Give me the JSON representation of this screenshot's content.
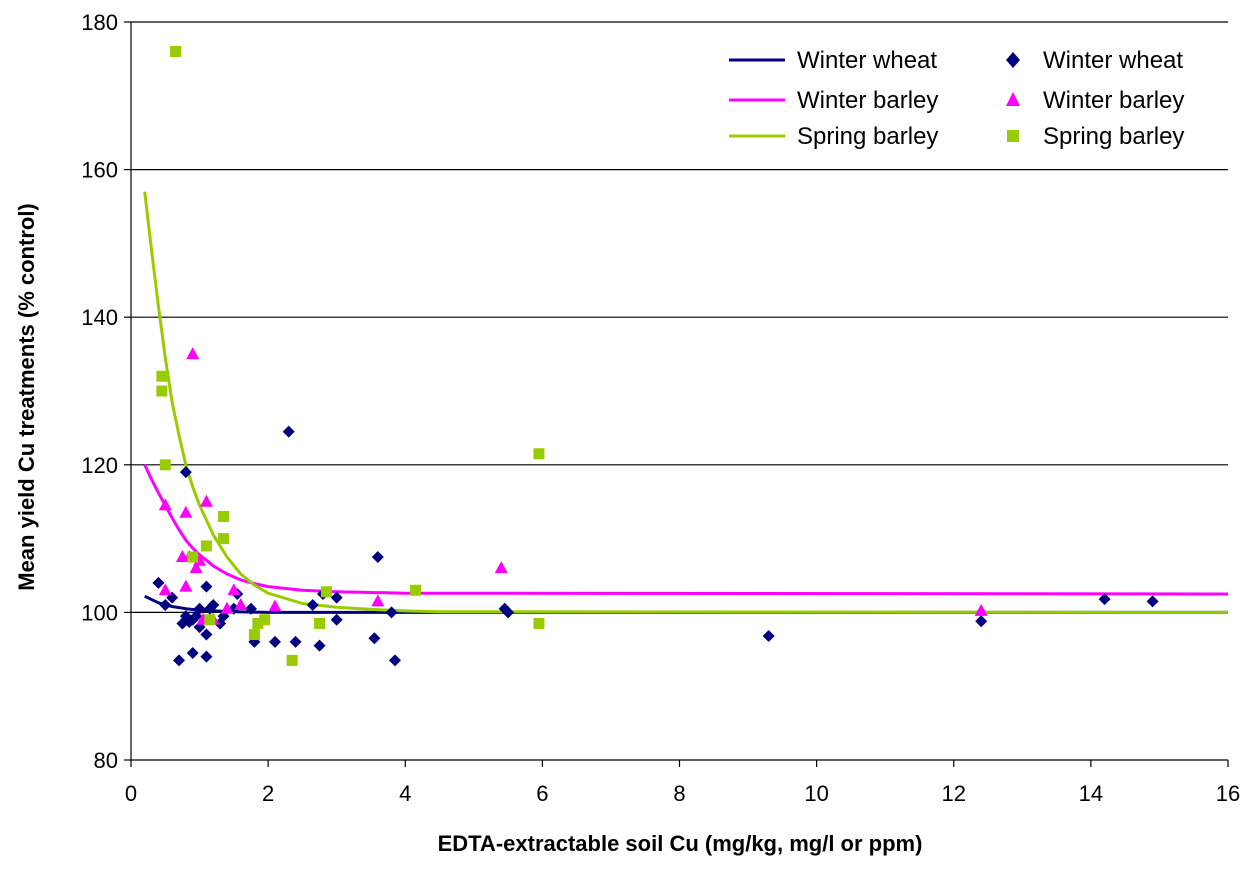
{
  "chart_data": {
    "type": "scatter",
    "title": "",
    "xlabel": "EDTA-extractable soil Cu (mg/kg, mg/l or ppm)",
    "ylabel": "Mean yield Cu treatments (% control)",
    "xlim": [
      0,
      16
    ],
    "ylim": [
      80,
      180
    ],
    "xticks": [
      "0",
      "2",
      "4",
      "6",
      "8",
      "10",
      "12",
      "14",
      "16"
    ],
    "yticks": [
      "80",
      "100",
      "120",
      "140",
      "160",
      "180"
    ],
    "grid": "horizontal major gridlines",
    "legend": "top-right",
    "series": [
      {
        "name": "Winter wheat",
        "kind": "line",
        "color": "#000080",
        "x": [
          0.2,
          0.4,
          0.6,
          0.8,
          1.0,
          1.5,
          2.0,
          3.0,
          4.0,
          16.0
        ],
        "y": [
          102.2,
          101.3,
          100.8,
          100.5,
          100.3,
          100.1,
          100.0,
          100.0,
          100.0,
          100.0
        ]
      },
      {
        "name": "Winter barley",
        "kind": "line",
        "color": "#FF00FF",
        "x": [
          0.2,
          0.3,
          0.4,
          0.5,
          0.6,
          0.7,
          0.8,
          0.9,
          1.0,
          1.2,
          1.4,
          1.6,
          1.8,
          2.0,
          2.5,
          3.0,
          4.0,
          16.0
        ],
        "y": [
          120.0,
          118.0,
          116.2,
          114.5,
          112.8,
          111.2,
          109.8,
          108.7,
          107.8,
          106.3,
          105.2,
          104.4,
          103.9,
          103.5,
          103.0,
          102.8,
          102.6,
          102.5
        ]
      },
      {
        "name": "Spring barley",
        "kind": "line",
        "color": "#99CC00",
        "x": [
          0.2,
          0.3,
          0.4,
          0.5,
          0.6,
          0.7,
          0.8,
          0.9,
          1.0,
          1.2,
          1.4,
          1.6,
          1.8,
          2.0,
          2.5,
          3.0,
          3.5,
          4.0,
          4.5,
          16.0
        ],
        "y": [
          157.0,
          149.0,
          141.5,
          134.5,
          128.5,
          124.0,
          120.0,
          117.0,
          114.5,
          110.5,
          107.5,
          105.2,
          103.7,
          102.6,
          101.2,
          100.7,
          100.4,
          100.2,
          100.1,
          100.0
        ]
      },
      {
        "name": "Winter wheat",
        "kind": "points",
        "marker": "diamond",
        "color": "#000080",
        "x": [
          0.4,
          0.5,
          0.6,
          0.7,
          0.75,
          0.8,
          0.8,
          0.85,
          0.9,
          0.9,
          0.95,
          1.0,
          1.0,
          1.1,
          1.1,
          1.1,
          1.15,
          1.2,
          1.3,
          1.35,
          1.5,
          1.55,
          1.75,
          1.8,
          2.1,
          2.3,
          2.4,
          2.65,
          2.75,
          2.8,
          3.0,
          3.0,
          3.55,
          3.6,
          3.8,
          3.85,
          5.45,
          5.5,
          9.3,
          12.4,
          14.2,
          14.9
        ],
        "y": [
          104.0,
          101.0,
          102.0,
          93.5,
          98.5,
          119.0,
          99.5,
          98.7,
          94.5,
          99.0,
          99.5,
          100.5,
          98.0,
          103.5,
          97.0,
          94.0,
          100.5,
          101.0,
          98.5,
          99.5,
          100.5,
          102.5,
          100.5,
          96.0,
          96.0,
          124.5,
          96.0,
          101.0,
          95.5,
          102.5,
          99.0,
          102.0,
          96.5,
          107.5,
          100.0,
          93.5,
          100.5,
          100.0,
          96.8,
          98.8,
          101.8,
          101.5
        ]
      },
      {
        "name": "Winter barley",
        "kind": "points",
        "marker": "triangle",
        "color": "#FF00FF",
        "x": [
          0.5,
          0.5,
          0.75,
          0.8,
          0.8,
          0.85,
          0.9,
          0.95,
          1.0,
          1.05,
          1.1,
          1.2,
          1.4,
          1.5,
          1.6,
          2.1,
          5.4,
          3.6,
          12.4
        ],
        "y": [
          114.5,
          103.0,
          107.5,
          103.5,
          113.5,
          107.5,
          135.0,
          106.0,
          107.0,
          99.0,
          115.0,
          99.0,
          100.5,
          103.0,
          101.0,
          100.8,
          106.0,
          101.5,
          100.2
        ]
      },
      {
        "name": "Spring barley",
        "kind": "points",
        "marker": "square",
        "color": "#99CC00",
        "x": [
          0.65,
          0.45,
          0.45,
          0.5,
          0.9,
          1.1,
          1.15,
          1.35,
          1.35,
          1.8,
          1.85,
          1.95,
          2.35,
          2.75,
          2.85,
          4.15,
          5.95,
          5.95
        ],
        "y": [
          176.0,
          132.0,
          130.0,
          120.0,
          107.5,
          109.0,
          99.0,
          113.0,
          110.0,
          97.0,
          98.5,
          99.0,
          93.5,
          98.5,
          102.8,
          103.0,
          121.5,
          98.5
        ]
      }
    ]
  },
  "legend": {
    "lines": [
      "Winter wheat",
      "Winter barley",
      "Spring barley"
    ],
    "markers": [
      "Winter wheat",
      "Winter barley",
      "Spring barley"
    ]
  }
}
